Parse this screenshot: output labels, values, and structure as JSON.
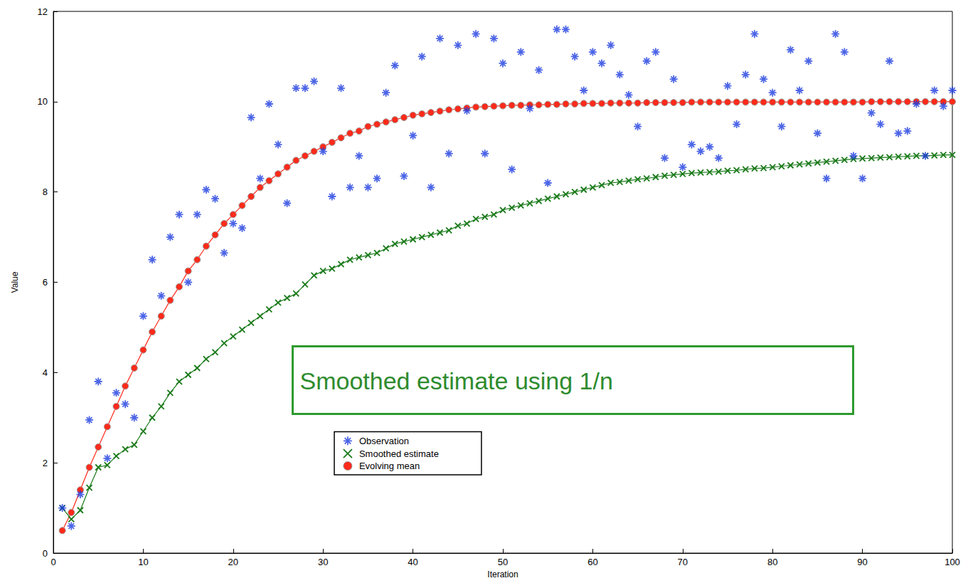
{
  "chart_data": {
    "type": "line",
    "x_label": "Iteration",
    "y_label": "Value",
    "annotation": "Smoothed estimate using 1/n",
    "grid": false,
    "legend": "lower center",
    "xlim": [
      0,
      100
    ],
    "xticks": [
      0,
      10,
      20,
      30,
      40,
      50,
      60,
      70,
      80,
      90,
      100
    ],
    "ylim": [
      0,
      12
    ],
    "yticks": [
      0,
      2,
      4,
      6,
      8,
      10,
      12
    ],
    "x": [
      1,
      2,
      3,
      4,
      5,
      6,
      7,
      8,
      9,
      10,
      11,
      12,
      13,
      14,
      15,
      16,
      17,
      18,
      19,
      20,
      21,
      22,
      23,
      24,
      25,
      26,
      27,
      28,
      29,
      30,
      31,
      32,
      33,
      34,
      35,
      36,
      37,
      38,
      39,
      40,
      41,
      42,
      43,
      44,
      45,
      46,
      47,
      48,
      49,
      50,
      51,
      52,
      53,
      54,
      55,
      56,
      57,
      58,
      59,
      60,
      61,
      62,
      63,
      64,
      65,
      66,
      67,
      68,
      69,
      70,
      71,
      72,
      73,
      74,
      75,
      76,
      77,
      78,
      79,
      80,
      81,
      82,
      83,
      84,
      85,
      86,
      87,
      88,
      89,
      90,
      91,
      92,
      93,
      94,
      95,
      96,
      97,
      98,
      99,
      100
    ],
    "series": [
      {
        "name": "Observation",
        "type": "scatter",
        "color": "#1f3fe0",
        "marker": "star",
        "values": [
          1.0,
          0.6,
          1.3,
          2.95,
          3.8,
          2.1,
          3.55,
          3.3,
          3.0,
          5.25,
          6.5,
          5.7,
          7.0,
          7.5,
          6.0,
          7.5,
          8.05,
          7.85,
          6.65,
          7.3,
          7.2,
          9.65,
          8.3,
          9.95,
          9.05,
          7.75,
          10.3,
          10.3,
          10.45,
          8.9,
          7.9,
          10.3,
          8.1,
          8.8,
          8.1,
          8.3,
          10.2,
          10.8,
          8.35,
          9.25,
          11.0,
          8.1,
          11.4,
          8.85,
          11.25,
          9.8,
          11.5,
          8.85,
          11.4,
          10.85,
          8.5,
          11.1,
          9.85,
          10.7,
          8.2,
          11.6,
          11.6,
          11.0,
          10.25,
          11.1,
          10.85,
          11.25,
          10.6,
          10.15,
          9.45,
          10.9,
          11.1,
          8.75,
          10.5,
          8.55,
          9.05,
          8.9,
          9.0,
          8.75,
          10.35,
          9.5,
          10.6,
          11.5,
          10.5,
          10.2,
          9.45,
          11.15,
          10.25,
          10.9,
          9.3,
          8.3,
          11.5,
          11.1,
          8.8,
          8.3,
          9.75,
          9.5,
          10.9,
          9.3,
          9.35,
          9.95,
          8.8,
          10.25,
          9.9,
          10.25
        ]
      },
      {
        "name": "Smoothed estimate",
        "type": "line",
        "color": "#1a7a1a",
        "marker": "x",
        "line_style": "solid",
        "values": [
          1.0,
          0.75,
          0.95,
          1.45,
          1.9,
          1.95,
          2.15,
          2.3,
          2.4,
          2.7,
          3.0,
          3.25,
          3.55,
          3.8,
          3.95,
          4.1,
          4.3,
          4.45,
          4.65,
          4.8,
          4.95,
          5.1,
          5.25,
          5.4,
          5.55,
          5.65,
          5.75,
          5.95,
          6.15,
          6.25,
          6.3,
          6.4,
          6.5,
          6.55,
          6.6,
          6.65,
          6.75,
          6.85,
          6.9,
          6.95,
          7.0,
          7.05,
          7.1,
          7.15,
          7.25,
          7.3,
          7.4,
          7.45,
          7.5,
          7.6,
          7.65,
          7.7,
          7.75,
          7.8,
          7.85,
          7.9,
          7.95,
          8.0,
          8.05,
          8.1,
          8.15,
          8.2,
          8.22,
          8.25,
          8.28,
          8.3,
          8.33,
          8.36,
          8.38,
          8.4,
          8.42,
          8.43,
          8.44,
          8.45,
          8.47,
          8.48,
          8.5,
          8.52,
          8.53,
          8.55,
          8.57,
          8.59,
          8.61,
          8.63,
          8.65,
          8.67,
          8.69,
          8.71,
          8.73,
          8.74,
          8.75,
          8.76,
          8.77,
          8.78,
          8.79,
          8.8,
          8.8,
          8.81,
          8.82,
          8.82
        ]
      },
      {
        "name": "Evolving mean",
        "type": "line",
        "color": "#ff2a1a",
        "marker": "circle",
        "line_style": "solid",
        "values": [
          0.5,
          0.9,
          1.4,
          1.9,
          2.35,
          2.8,
          3.25,
          3.7,
          4.1,
          4.5,
          4.9,
          5.25,
          5.6,
          5.9,
          6.25,
          6.5,
          6.8,
          7.05,
          7.3,
          7.5,
          7.7,
          7.9,
          8.1,
          8.25,
          8.4,
          8.55,
          8.7,
          8.8,
          8.9,
          9.0,
          9.1,
          9.2,
          9.3,
          9.35,
          9.45,
          9.5,
          9.55,
          9.6,
          9.65,
          9.7,
          9.73,
          9.76,
          9.79,
          9.82,
          9.84,
          9.86,
          9.88,
          9.89,
          9.9,
          9.91,
          9.92,
          9.92,
          9.93,
          9.93,
          9.94,
          9.94,
          9.95,
          9.95,
          9.96,
          9.96,
          9.96,
          9.97,
          9.97,
          9.97,
          9.97,
          9.98,
          9.98,
          9.98,
          9.98,
          9.98,
          9.99,
          9.99,
          9.99,
          9.99,
          9.99,
          9.99,
          9.99,
          9.99,
          9.99,
          9.99,
          9.99,
          9.99,
          9.99,
          9.99,
          9.99,
          9.99,
          9.99,
          9.99,
          9.99,
          9.99,
          10,
          10,
          10,
          10,
          10,
          10,
          10,
          10,
          10,
          10
        ]
      }
    ]
  }
}
